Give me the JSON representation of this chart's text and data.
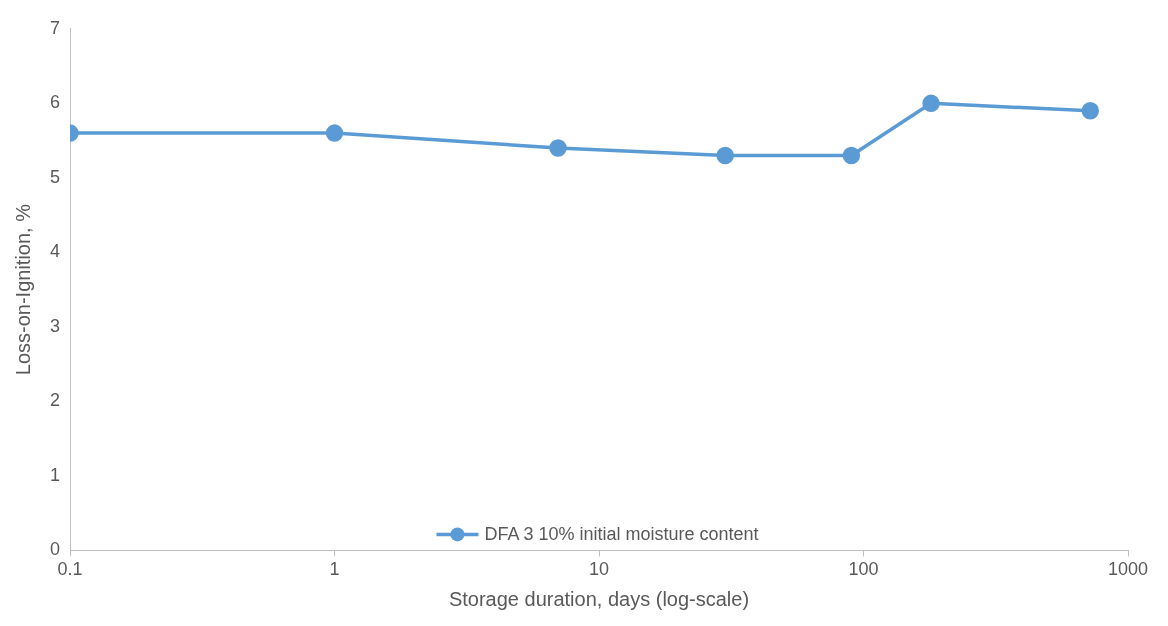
{
  "chart_data": {
    "type": "line",
    "xlabel": "Storage duration, days (log-scale)",
    "ylabel": "Loss-on-Ignition, %",
    "x": [
      0.1,
      1,
      7,
      30,
      90,
      180,
      720
    ],
    "series": [
      {
        "name": "DFA 3 10% initial moisture content",
        "color": "#5b9bd5",
        "values": [
          5.6,
          5.6,
          5.4,
          5.3,
          5.3,
          6.0,
          5.9
        ]
      }
    ],
    "log": "x",
    "xlim": [
      0.1,
      1000
    ],
    "xticks": [
      0.1,
      1,
      10,
      100,
      1000
    ],
    "ylim": [
      0,
      7
    ],
    "yticks": [
      0,
      1,
      2,
      3,
      4,
      5,
      6,
      7
    ],
    "grid": false,
    "legend": "bottom",
    "marker": "circle",
    "line_style": "solid"
  }
}
